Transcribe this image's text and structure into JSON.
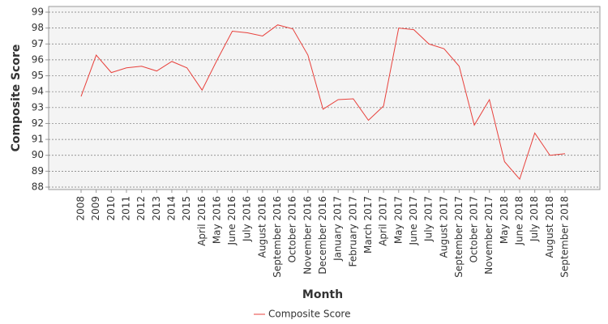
{
  "chart_data": {
    "type": "line",
    "x_label": "Month",
    "y_label": "Composite Score",
    "categories": [
      "2008",
      "2009",
      "2010",
      "2011",
      "2012",
      "2013",
      "2014",
      "2015",
      "April 2016",
      "May 2016",
      "June 2016",
      "July 2016",
      "August 2016",
      "September 2016",
      "October 2016",
      "November 2016",
      "December 2016",
      "January 2017",
      "February 2017",
      "March 2017",
      "April 2017",
      "May 2017",
      "June 2017",
      "July 2017",
      "August 2017",
      "September 2017",
      "October 2017",
      "November 2017",
      "May 2018",
      "June 2018",
      "July 2018",
      "August 2018",
      "September 2018"
    ],
    "series": [
      {
        "name": "Composite Score",
        "color": "#e8413c",
        "values": [
          93.7,
          96.3,
          95.2,
          95.5,
          95.6,
          95.3,
          95.9,
          95.5,
          94.1,
          96.0,
          97.8,
          97.7,
          97.5,
          98.2,
          97.95,
          96.3,
          92.9,
          93.5,
          93.55,
          92.2,
          93.1,
          98.0,
          97.9,
          97.0,
          96.7,
          95.6,
          91.9,
          93.5,
          89.6,
          88.5,
          91.4,
          90.0,
          90.1
        ]
      }
    ],
    "ylim": [
      88,
      99
    ],
    "yticks": [
      88,
      89,
      90,
      91,
      92,
      93,
      94,
      95,
      96,
      97,
      98,
      99
    ],
    "grid": true,
    "legend": "bottom"
  }
}
